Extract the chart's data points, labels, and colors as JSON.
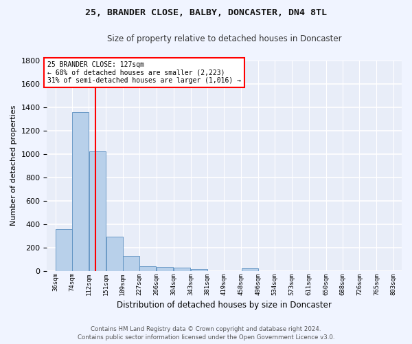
{
  "title1": "25, BRANDER CLOSE, BALBY, DONCASTER, DN4 8TL",
  "title2": "Size of property relative to detached houses in Doncaster",
  "xlabel": "Distribution of detached houses by size in Doncaster",
  "ylabel": "Number of detached properties",
  "bar_heights": [
    355,
    1360,
    1020,
    290,
    130,
    40,
    35,
    25,
    15,
    0,
    0,
    20,
    0,
    0,
    0,
    0,
    0,
    0,
    0,
    0
  ],
  "bin_labels": [
    "36sqm",
    "74sqm",
    "112sqm",
    "151sqm",
    "189sqm",
    "227sqm",
    "266sqm",
    "304sqm",
    "343sqm",
    "381sqm",
    "419sqm",
    "458sqm",
    "496sqm",
    "534sqm",
    "573sqm",
    "611sqm",
    "650sqm",
    "688sqm",
    "726sqm",
    "765sqm",
    "803sqm"
  ],
  "bin_edges": [
    36,
    74,
    112,
    151,
    189,
    227,
    266,
    304,
    343,
    381,
    419,
    458,
    496,
    534,
    573,
    611,
    650,
    688,
    726,
    765,
    803
  ],
  "bar_color": "#b8d0ea",
  "bar_edge_color": "#5a8fc0",
  "bg_color": "#e8edf8",
  "grid_color": "#ffffff",
  "red_line_x": 127,
  "annotation_title": "25 BRANDER CLOSE: 127sqm",
  "annotation_line1": "← 68% of detached houses are smaller (2,223)",
  "annotation_line2": "31% of semi-detached houses are larger (1,016) →",
  "ylim": [
    0,
    1800
  ],
  "yticks": [
    0,
    200,
    400,
    600,
    800,
    1000,
    1200,
    1400,
    1600,
    1800
  ],
  "footer1": "Contains HM Land Registry data © Crown copyright and database right 2024.",
  "footer2": "Contains public sector information licensed under the Open Government Licence v3.0."
}
